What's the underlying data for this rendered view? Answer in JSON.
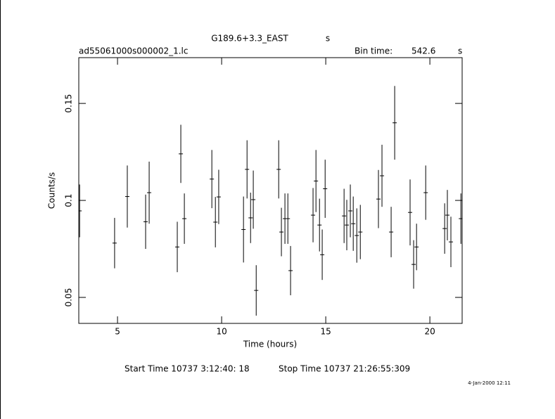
{
  "chart_data": {
    "type": "errorbar",
    "title": "G189.6+3.3_EAST",
    "title_unit": "s",
    "file_name": "ad55061000s000002_1.lc",
    "bin_time_label": "Bin time:",
    "bin_time": 542.6,
    "bin_time_unit": "s",
    "x_label": "Time (hours)",
    "y_label": "Counts/s",
    "start_time": "Start Time 10737  3:12:40: 18",
    "stop_time": "Stop Time 10737 21:26:55:309",
    "date": "4-Jan-2000 12:11",
    "xlim": [
      3.14,
      21.55
    ],
    "ylim": [
      0.0366,
      0.1736
    ],
    "xticks": [
      5,
      10,
      15,
      20
    ],
    "yticks": [
      0.05,
      0.1,
      0.15
    ],
    "color": "#000000",
    "series": [
      {
        "x": [
          3.18,
          4.86,
          5.47,
          6.35,
          6.52,
          7.87,
          8.04,
          8.21,
          9.53,
          9.7,
          9.86,
          11.05,
          11.22,
          11.39,
          11.52,
          11.66,
          12.74,
          12.87,
          13.04,
          13.18,
          13.31,
          14.39,
          14.53,
          14.7,
          14.83,
          14.97,
          15.88,
          16.01,
          16.18,
          16.32,
          16.49,
          16.66,
          17.53,
          17.7,
          18.14,
          18.31,
          19.05,
          19.22,
          19.36,
          19.8,
          20.71,
          20.84,
          21.01,
          21.49
        ],
        "values": [
          0.0946,
          0.078,
          0.102,
          0.089,
          0.104,
          0.076,
          0.124,
          0.0906,
          0.111,
          0.0888,
          0.1018,
          0.085,
          0.116,
          0.091,
          0.1004,
          0.0536,
          0.116,
          0.0837,
          0.0906,
          0.0906,
          0.0638,
          0.0924,
          0.11,
          0.0873,
          0.072,
          0.106,
          0.092,
          0.0873,
          0.0946,
          0.088,
          0.0819,
          0.0837,
          0.1007,
          0.1127,
          0.0837,
          0.14,
          0.0938,
          0.067,
          0.076,
          0.104,
          0.0855,
          0.0924,
          0.0786,
          0.0906
        ],
        "errors": [
          0.0136,
          0.013,
          0.016,
          0.014,
          0.016,
          0.013,
          0.015,
          0.013,
          0.015,
          0.013,
          0.014,
          0.017,
          0.015,
          0.013,
          0.015,
          0.013,
          0.015,
          0.0125,
          0.013,
          0.013,
          0.0127,
          0.014,
          0.016,
          0.0136,
          0.013,
          0.015,
          0.014,
          0.013,
          0.0136,
          0.014,
          0.014,
          0.014,
          0.015,
          0.016,
          0.013,
          0.019,
          0.017,
          0.0125,
          0.012,
          0.014,
          0.013,
          0.013,
          0.013,
          0.013
        ]
      }
    ]
  }
}
